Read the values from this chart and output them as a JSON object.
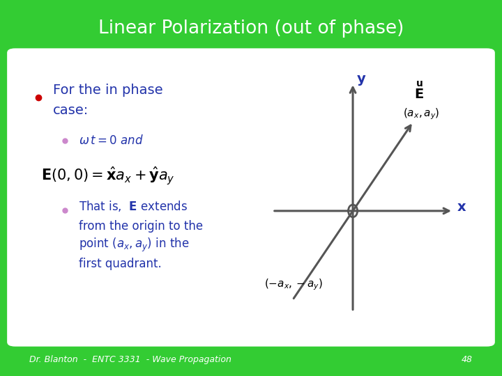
{
  "title": "Linear Polarization (out of phase)",
  "title_bg_color": "#33cc33",
  "title_text_color": "#ffffff",
  "slide_bg_color": "#33cc33",
  "content_bg_color": "#ffffff",
  "bullet_color_main": "#cc0000",
  "bullet_color_sub": "#cc88cc",
  "text_color": "#2233aa",
  "axis_color": "#555555",
  "footer_text": "Dr. Blanton  -  ENTC 3331  - Wave Propagation",
  "footer_number": "48"
}
